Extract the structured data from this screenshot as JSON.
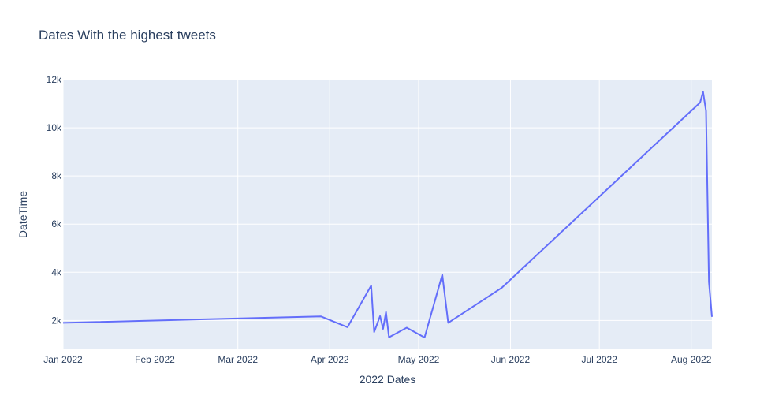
{
  "chart_data": {
    "type": "line",
    "title": "Dates With the highest tweets",
    "xlabel": "2022 Dates",
    "ylabel": "DateTime",
    "x_tick_labels": [
      "Jan 2022",
      "Feb 2022",
      "Mar 2022",
      "Apr 2022",
      "May 2022",
      "Jun 2022",
      "Jul 2022",
      "Aug 2022"
    ],
    "y_tick_labels": [
      "2k",
      "4k",
      "6k",
      "8k",
      "10k",
      "12k"
    ],
    "xlim": [
      "2022-01-01",
      "2022-08-08"
    ],
    "ylim": [
      800,
      12000
    ],
    "grid": true,
    "colors": {
      "line": "#636efa",
      "plot_bg": "#e5ecf6",
      "grid": "#ffffff",
      "text": "#2a3f5f"
    },
    "series": [
      {
        "x": [
          "2022-01-01",
          "2022-03-29",
          "2022-04-07",
          "2022-04-15",
          "2022-04-16",
          "2022-04-18",
          "2022-04-19",
          "2022-04-20",
          "2022-04-21",
          "2022-04-27",
          "2022-05-03",
          "2022-05-09",
          "2022-05-11",
          "2022-05-29",
          "2022-08-04",
          "2022-08-05",
          "2022-08-06",
          "2022-08-07",
          "2022-08-08"
        ],
        "y": [
          1900,
          2170,
          1720,
          3450,
          1520,
          2180,
          1650,
          2350,
          1300,
          1700,
          1290,
          3900,
          1900,
          3350,
          11050,
          11500,
          10700,
          3600,
          2150
        ]
      }
    ]
  }
}
